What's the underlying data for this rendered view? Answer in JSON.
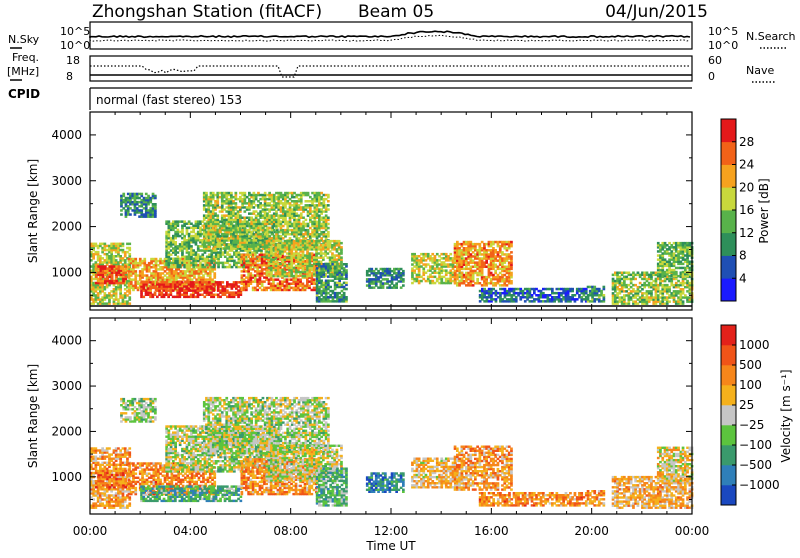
{
  "header": {
    "station": "Zhongshan Station (fitACF)",
    "beam": "Beam 05",
    "date": "04/Jun/2015"
  },
  "status_panel": {
    "nsky_label": "N.Sky",
    "nsky_ticks": [
      "10^5",
      "10^0"
    ],
    "nsearch_label": "N.Search",
    "nsearch_ticks": [
      "10^5",
      "10^0"
    ],
    "freq_label": "Freq.",
    "freq_unit": "[MHz]",
    "freq_ticks": [
      "18",
      "8"
    ],
    "nave_label": "Nave",
    "nave_ticks": [
      "60",
      "0"
    ],
    "cpid_label": "CPID",
    "cpid_text": "normal (fast stereo) 153"
  },
  "x_axis": {
    "label": "Time UT",
    "ticks": [
      "00:00",
      "04:00",
      "08:00",
      "12:00",
      "16:00",
      "20:00",
      "00:00"
    ]
  },
  "chart_data": [
    {
      "type": "heatmap",
      "name": "power-panel",
      "x": {
        "label": "Time UT",
        "range_hours": [
          0,
          24
        ]
      },
      "y": {
        "label": "Slant Range [km]",
        "range_km": [
          180,
          4500
        ],
        "ticks": [
          1000,
          2000,
          3000,
          4000
        ]
      },
      "colorbar": {
        "label": "Power [dB]",
        "ticks": [
          "4",
          "8",
          "12",
          "16",
          "20",
          "24",
          "28"
        ],
        "range": [
          0,
          30
        ],
        "colors": [
          "#1a1aff",
          "#1f4fb4",
          "#2e8f5a",
          "#58b24a",
          "#c8d83c",
          "#f6a21e",
          "#f26218",
          "#e4191a"
        ]
      },
      "patches": [
        {
          "t0": 0.0,
          "t1": 1.6,
          "r0": 300,
          "r1": 1650,
          "level": 0.55
        },
        {
          "t0": 0.2,
          "t1": 1.4,
          "r0": 750,
          "r1": 1150,
          "level": 0.85
        },
        {
          "t0": 1.2,
          "t1": 2.6,
          "r0": 2200,
          "r1": 2700,
          "level": 0.3
        },
        {
          "t0": 1.5,
          "t1": 5.0,
          "r0": 600,
          "r1": 1300,
          "level": 0.7
        },
        {
          "t0": 2.0,
          "t1": 6.0,
          "r0": 450,
          "r1": 800,
          "level": 0.92
        },
        {
          "t0": 3.0,
          "t1": 7.5,
          "r0": 1100,
          "r1": 2100,
          "level": 0.45
        },
        {
          "t0": 4.5,
          "t1": 9.5,
          "r0": 1500,
          "r1": 2750,
          "level": 0.5
        },
        {
          "t0": 6.0,
          "t1": 9.0,
          "r0": 600,
          "r1": 1400,
          "level": 0.78
        },
        {
          "t0": 7.0,
          "t1": 10.0,
          "r0": 900,
          "r1": 1700,
          "level": 0.55
        },
        {
          "t0": 9.0,
          "t1": 10.2,
          "r0": 350,
          "r1": 1200,
          "level": 0.35
        },
        {
          "t0": 11.0,
          "t1": 12.5,
          "r0": 650,
          "r1": 1100,
          "level": 0.3
        },
        {
          "t0": 12.8,
          "t1": 14.8,
          "r0": 750,
          "r1": 1400,
          "level": 0.55
        },
        {
          "t0": 14.5,
          "t1": 16.8,
          "r0": 700,
          "r1": 1650,
          "level": 0.72
        },
        {
          "t0": 15.5,
          "t1": 19.8,
          "r0": 350,
          "r1": 650,
          "level": 0.22
        },
        {
          "t0": 19.8,
          "t1": 20.5,
          "r0": 350,
          "r1": 700,
          "level": 0.35
        },
        {
          "t0": 20.8,
          "t1": 24.0,
          "r0": 300,
          "r1": 1000,
          "level": 0.5
        },
        {
          "t0": 22.6,
          "t1": 24.0,
          "r0": 900,
          "r1": 1650,
          "level": 0.45
        }
      ]
    },
    {
      "type": "heatmap",
      "name": "velocity-panel",
      "x": {
        "label": "Time UT",
        "range_hours": [
          0,
          24
        ]
      },
      "y": {
        "label": "Slant Range [km]",
        "range_km": [
          180,
          4500
        ],
        "ticks": [
          1000,
          2000,
          3000,
          4000
        ]
      },
      "colorbar": {
        "label": "Velocity [m s⁻¹]",
        "ticks": [
          "1000",
          "500",
          "100",
          "25",
          "−25",
          "−100",
          "−500",
          "−1000"
        ],
        "colors": [
          "#1a48c0",
          "#2f7fb9",
          "#3a9a6c",
          "#5cc43e",
          "#c6c6c6",
          "#f5b11c",
          "#f6861a",
          "#f05418",
          "#e3211a"
        ]
      },
      "patches": [
        {
          "t0": 0.0,
          "t1": 1.6,
          "r0": 300,
          "r1": 1650,
          "level": 0.65
        },
        {
          "t0": 0.2,
          "t1": 1.4,
          "r0": 750,
          "r1": 1150,
          "level": 0.78
        },
        {
          "t0": 1.2,
          "t1": 2.6,
          "r0": 2200,
          "r1": 2700,
          "level": 0.45
        },
        {
          "t0": 1.5,
          "t1": 5.0,
          "r0": 600,
          "r1": 1300,
          "level": 0.72
        },
        {
          "t0": 2.0,
          "t1": 6.0,
          "r0": 450,
          "r1": 800,
          "level": 0.3
        },
        {
          "t0": 3.0,
          "t1": 7.5,
          "r0": 1100,
          "r1": 2100,
          "level": 0.48
        },
        {
          "t0": 4.5,
          "t1": 9.5,
          "r0": 1500,
          "r1": 2750,
          "level": 0.47
        },
        {
          "t0": 6.0,
          "t1": 9.0,
          "r0": 600,
          "r1": 1400,
          "level": 0.7
        },
        {
          "t0": 7.0,
          "t1": 10.0,
          "r0": 900,
          "r1": 1700,
          "level": 0.5
        },
        {
          "t0": 9.0,
          "t1": 10.2,
          "r0": 350,
          "r1": 1200,
          "level": 0.35
        },
        {
          "t0": 11.0,
          "t1": 12.5,
          "r0": 650,
          "r1": 1100,
          "level": 0.2
        },
        {
          "t0": 12.8,
          "t1": 14.8,
          "r0": 750,
          "r1": 1400,
          "level": 0.6
        },
        {
          "t0": 14.5,
          "t1": 16.8,
          "r0": 700,
          "r1": 1650,
          "level": 0.68
        },
        {
          "t0": 15.5,
          "t1": 19.8,
          "r0": 350,
          "r1": 650,
          "level": 0.72
        },
        {
          "t0": 19.8,
          "t1": 20.5,
          "r0": 350,
          "r1": 700,
          "level": 0.7
        },
        {
          "t0": 20.8,
          "t1": 24.0,
          "r0": 300,
          "r1": 1000,
          "level": 0.62
        },
        {
          "t0": 22.6,
          "t1": 24.0,
          "r0": 900,
          "r1": 1650,
          "level": 0.55
        }
      ]
    }
  ]
}
